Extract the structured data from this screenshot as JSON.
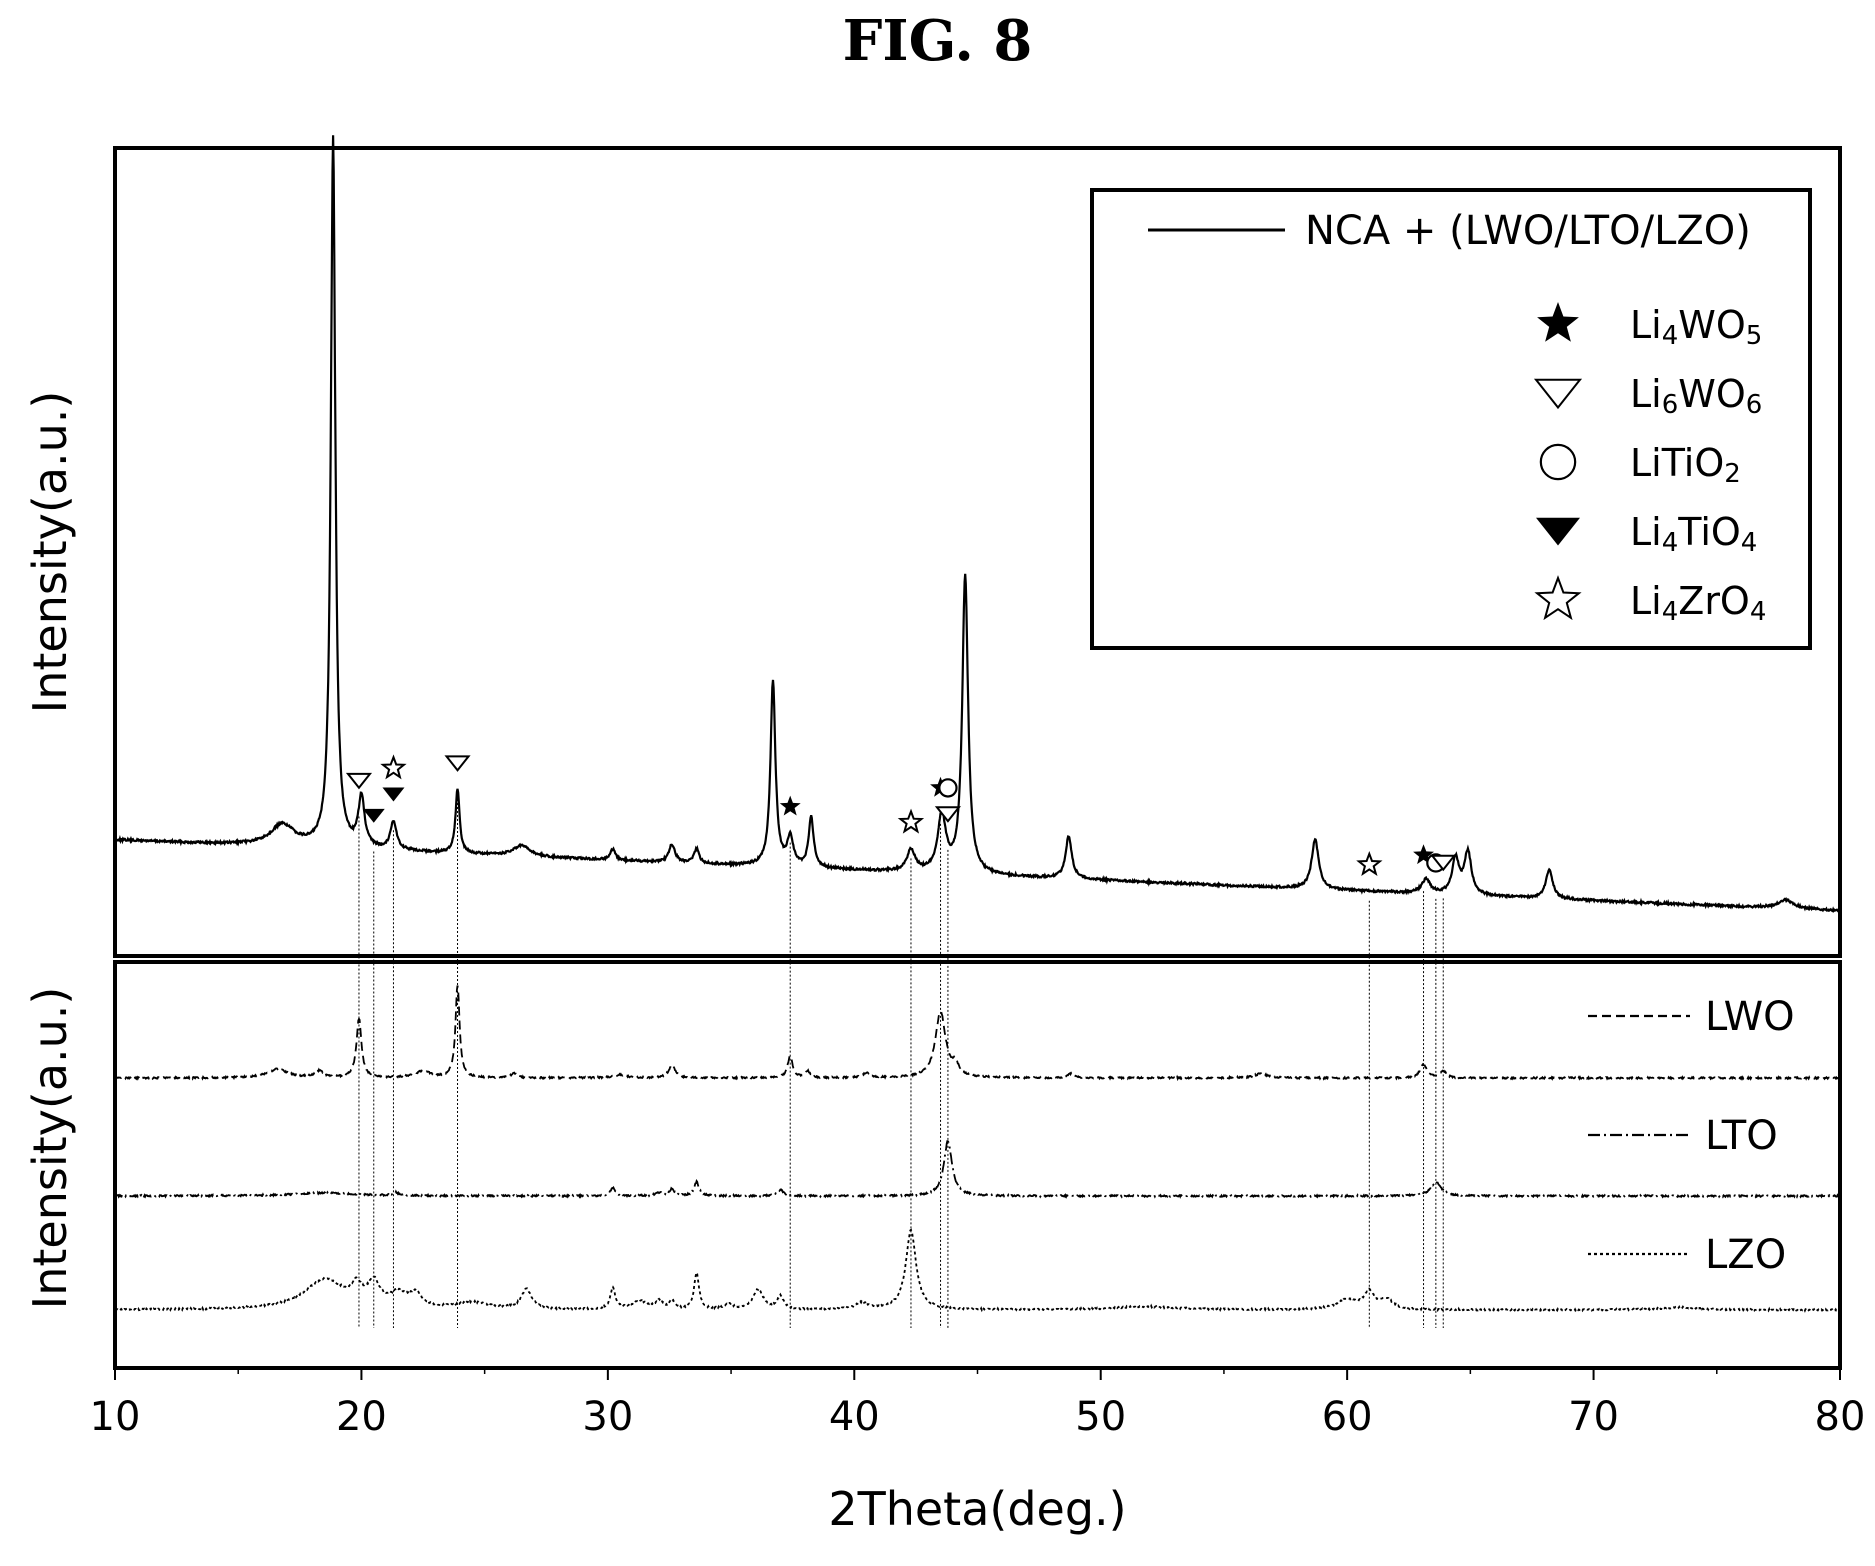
{
  "figure_label": "FIG. 8",
  "chart_data": [
    {
      "type": "line",
      "panel": "top",
      "ylabel": "Intensity(a.u.)",
      "xlim": [
        10,
        80
      ],
      "legend_position": "top-right",
      "series": [
        {
          "name": "NCA + (LWO/LTO/LZO)",
          "style": "solid",
          "baseline": 12,
          "baseline_end": 2,
          "peaks": [
            [
              16.8,
              3,
              0.6
            ],
            [
              18.85,
              100,
              0.11
            ],
            [
              20.0,
              7,
              0.15
            ],
            [
              21.3,
              4,
              0.15
            ],
            [
              23.9,
              9,
              0.1
            ],
            [
              26.5,
              1.5,
              0.4
            ],
            [
              30.2,
              1.5,
              0.12
            ],
            [
              32.6,
              2.5,
              0.15
            ],
            [
              33.6,
              2,
              0.12
            ],
            [
              36.7,
              26,
              0.12
            ],
            [
              37.4,
              4,
              0.15
            ],
            [
              38.25,
              7,
              0.12
            ],
            [
              42.3,
              3,
              0.2
            ],
            [
              43.55,
              8,
              0.2
            ],
            [
              44.5,
              42,
              0.14
            ],
            [
              48.7,
              6,
              0.15
            ],
            [
              58.7,
              7,
              0.17
            ],
            [
              63.2,
              2,
              0.2
            ],
            [
              64.4,
              5,
              0.17
            ],
            [
              64.9,
              6,
              0.17
            ],
            [
              68.2,
              4,
              0.17
            ],
            [
              77.8,
              1.2,
              0.4
            ]
          ]
        }
      ],
      "phase_legend": [
        {
          "symbol": "filled-star",
          "label": "Li4WO5",
          "base": "Li",
          "sub1": "4",
          "mid": "WO",
          "sub2": "5"
        },
        {
          "symbol": "open-triangle-down",
          "label": "Li6WO6",
          "base": "Li",
          "sub1": "6",
          "mid": "WO",
          "sub2": "6"
        },
        {
          "symbol": "open-circle",
          "label": "LiTiO2",
          "base": "LiTiO",
          "sub1": "2",
          "mid": "",
          "sub2": ""
        },
        {
          "symbol": "filled-triangle-down",
          "label": "Li4TiO4",
          "base": "Li",
          "sub1": "4",
          "mid": "TiO",
          "sub2": "4"
        },
        {
          "symbol": "open-star",
          "label": "Li4ZrO4",
          "base": "Li",
          "sub1": "4",
          "mid": "ZrO",
          "sub2": "4"
        }
      ],
      "peak_markers": [
        {
          "x": 19.9,
          "symbol": "open-triangle-down"
        },
        {
          "x": 20.5,
          "symbol": "filled-triangle-down"
        },
        {
          "x": 21.3,
          "symbol": "filled-triangle-down"
        },
        {
          "x": 21.3,
          "symbol": "open-star"
        },
        {
          "x": 23.9,
          "symbol": "open-triangle-down"
        },
        {
          "x": 37.4,
          "symbol": "filled-star"
        },
        {
          "x": 42.3,
          "symbol": "open-star"
        },
        {
          "x": 43.5,
          "symbol": "filled-star"
        },
        {
          "x": 43.8,
          "symbol": "open-triangle-down"
        },
        {
          "x": 43.8,
          "symbol": "open-circle"
        },
        {
          "x": 60.9,
          "symbol": "open-star"
        },
        {
          "x": 63.1,
          "symbol": "filled-star"
        },
        {
          "x": 63.6,
          "symbol": "open-circle"
        },
        {
          "x": 63.9,
          "symbol": "open-triangle-down"
        }
      ]
    },
    {
      "type": "line",
      "panel": "bottom",
      "ylabel": "Intensity(a.u.)",
      "xlabel": "2Theta(deg.)",
      "xlim": [
        10,
        80
      ],
      "xticks": [
        10,
        20,
        30,
        40,
        50,
        60,
        70,
        80
      ],
      "legend_position": "right",
      "series": [
        {
          "name": "LWO",
          "style": "dashed",
          "baseline": 0,
          "peaks": [
            [
              16.6,
              4,
              0.5
            ],
            [
              18.3,
              3,
              0.2
            ],
            [
              19.9,
              27,
              0.12
            ],
            [
              22.5,
              3,
              0.4
            ],
            [
              23.9,
              42,
              0.1
            ],
            [
              26.2,
              2,
              0.15
            ],
            [
              30.5,
              1.5,
              0.3
            ],
            [
              32.6,
              6,
              0.15
            ],
            [
              37.4,
              10,
              0.12
            ],
            [
              38.1,
              3,
              0.12
            ],
            [
              40.5,
              2,
              0.2
            ],
            [
              43.5,
              30,
              0.25
            ],
            [
              44.1,
              5,
              0.15
            ],
            [
              48.8,
              2,
              0.15
            ],
            [
              56.5,
              2,
              0.3
            ],
            [
              63.1,
              6,
              0.17
            ],
            [
              63.9,
              3,
              0.15
            ]
          ]
        },
        {
          "name": "LTO",
          "style": "dashdot",
          "baseline": 0,
          "peaks": [
            [
              18.5,
              3,
              1.5
            ],
            [
              21.4,
              3,
              0.15
            ],
            [
              30.2,
              8,
              0.12
            ],
            [
              32.1,
              3,
              0.2
            ],
            [
              32.6,
              7,
              0.12
            ],
            [
              33.6,
              14,
              0.12
            ],
            [
              37.0,
              6,
              0.15
            ],
            [
              43.8,
              55,
              0.2
            ],
            [
              63.6,
              14,
              0.25
            ]
          ]
        },
        {
          "name": "LZO",
          "style": "dotted",
          "baseline": 0,
          "peaks": [
            [
              18.5,
              18,
              1.0
            ],
            [
              19.8,
              10,
              0.25
            ],
            [
              20.5,
              14,
              0.3
            ],
            [
              21.5,
              8,
              0.4
            ],
            [
              22.2,
              8,
              0.3
            ],
            [
              24.5,
              4,
              0.8
            ],
            [
              26.7,
              12,
              0.25
            ],
            [
              30.2,
              13,
              0.12
            ],
            [
              31.3,
              5,
              0.4
            ],
            [
              32.1,
              5,
              0.15
            ],
            [
              32.6,
              5,
              0.12
            ],
            [
              33.6,
              22,
              0.12
            ],
            [
              34.9,
              3,
              0.2
            ],
            [
              36.1,
              12,
              0.25
            ],
            [
              37.0,
              8,
              0.15
            ],
            [
              40.3,
              4,
              0.3
            ],
            [
              42.3,
              48,
              0.25
            ],
            [
              51.8,
              2,
              1.5
            ],
            [
              60.0,
              6,
              0.5
            ],
            [
              60.9,
              10,
              0.25
            ],
            [
              61.6,
              6,
              0.3
            ],
            [
              73.5,
              1.5,
              1.0
            ]
          ]
        }
      ]
    }
  ]
}
